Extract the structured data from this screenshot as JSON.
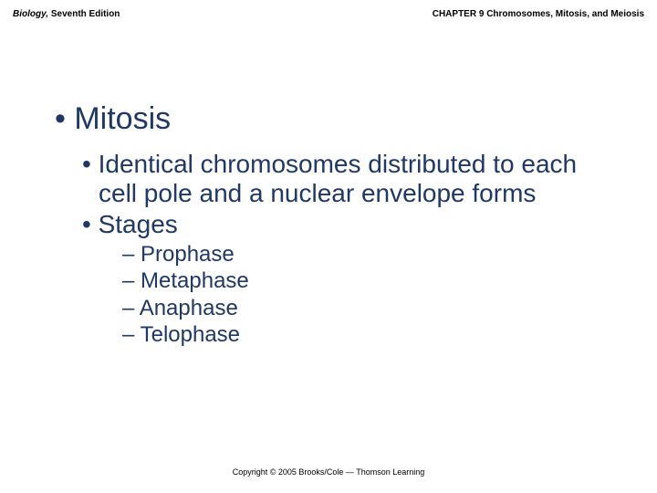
{
  "header": {
    "left_italic": "Biology,",
    "left_normal": " Seventh Edition",
    "right": "CHAPTER 9 Chromosomes, Mitosis, and Meiosis"
  },
  "content": {
    "title": "Mitosis",
    "sub1": "Identical chromosomes distributed to each cell pole and a nuclear envelope forms",
    "sub2": "Stages",
    "stages": {
      "s1": "Prophase",
      "s2": "Metaphase",
      "s3": "Anaphase",
      "s4": "Telophase"
    }
  },
  "footer": "Copyright © 2005 Brooks/Cole — Thomson Learning"
}
